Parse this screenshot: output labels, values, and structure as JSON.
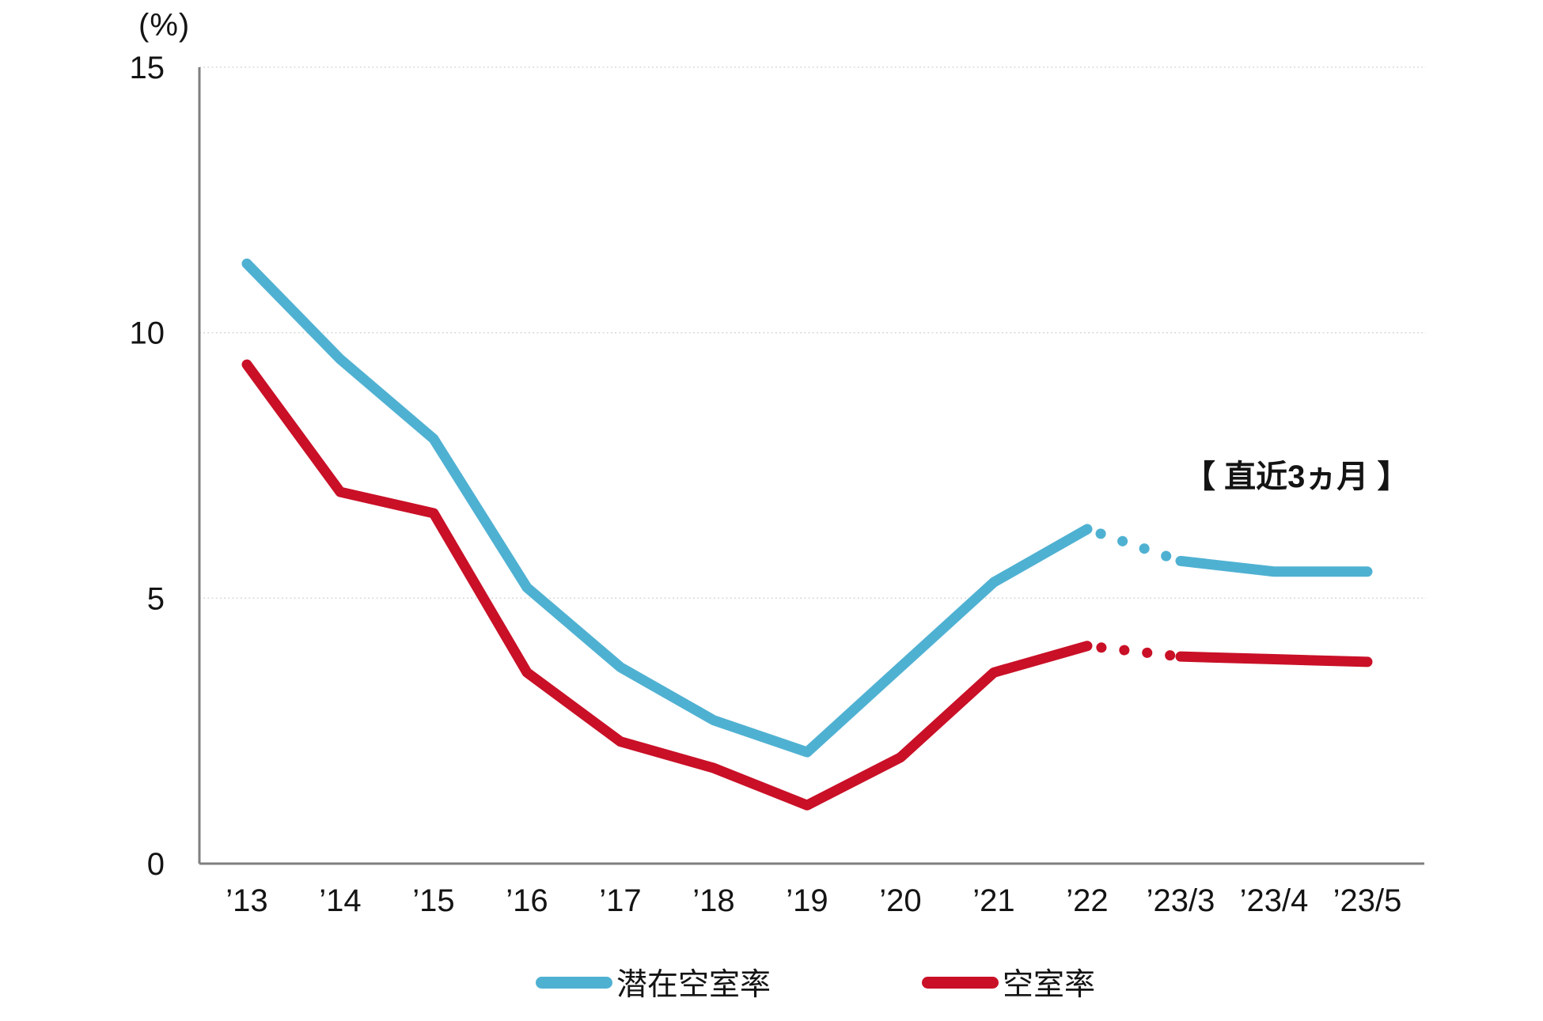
{
  "y_axis": {
    "unit_label": "(%)",
    "ticks": [
      {
        "label": "15",
        "value": 15
      },
      {
        "label": "10",
        "value": 10
      },
      {
        "label": "5",
        "value": 5
      },
      {
        "label": "0",
        "value": 0
      }
    ],
    "min": 0,
    "max": 15
  },
  "annotation": {
    "recent_label": "【 直近3ヵ月 】"
  },
  "legend": {
    "items": [
      {
        "label": "潜在空室率",
        "color": "#4fb1d2"
      },
      {
        "label": "空室率",
        "color": "#c91027"
      }
    ]
  },
  "colors": {
    "potential_vacancy_line": "#4fb1d2",
    "vacancy_line": "#c91027",
    "gridline": "#d7d7d7",
    "axis": "#7f7f7f",
    "text": "#141414"
  },
  "chart_data": {
    "type": "line",
    "title": "",
    "xlabel": "",
    "ylabel": "(%)",
    "ylim": [
      0,
      15
    ],
    "grid": true,
    "gridline_values": [
      5,
      10,
      15
    ],
    "legend_position": "bottom",
    "categories": [
      "’13",
      "’14",
      "’15",
      "’16",
      "’17",
      "’18",
      "’19",
      "’20",
      "’21",
      "’22",
      "’23/3",
      "’23/4",
      "’23/5"
    ],
    "series": [
      {
        "name": "潜在空室率",
        "color": "#4fb1d2",
        "values": [
          11.3,
          9.5,
          8.0,
          5.2,
          3.7,
          2.7,
          2.1,
          3.7,
          5.3,
          6.3,
          5.7,
          5.5,
          5.5
        ],
        "dotted_gap": {
          "from_index": 9,
          "to_index": 10
        }
      },
      {
        "name": "空室率",
        "color": "#c91027",
        "values": [
          9.4,
          7.0,
          6.6,
          3.6,
          2.3,
          1.8,
          1.1,
          2.0,
          3.6,
          4.1,
          3.9,
          3.85,
          3.8
        ],
        "dotted_gap": {
          "from_index": 9,
          "to_index": 10
        }
      }
    ]
  }
}
